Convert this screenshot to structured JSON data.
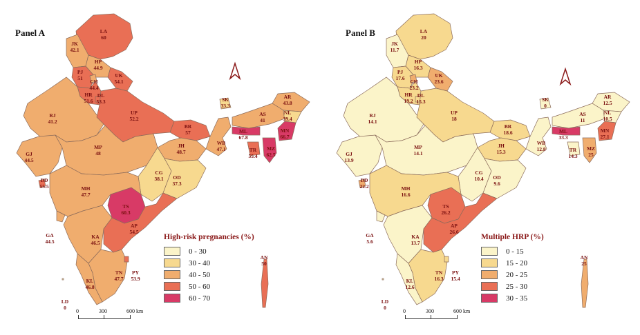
{
  "panels": [
    {
      "title": "Panel A",
      "legend": {
        "title": "High-risk pregnancies (%)",
        "items": [
          {
            "label": "0 - 30",
            "color": "#fbf4c9"
          },
          {
            "label": "30 - 40",
            "color": "#f7d98f"
          },
          {
            "label": "40 - 50",
            "color": "#f0ad6e"
          },
          {
            "label": "50 - 60",
            "color": "#e96f55"
          },
          {
            "label": "60 - 70",
            "color": "#d83a66"
          }
        ]
      },
      "scale": {
        "labels": [
          "0",
          "300",
          "600 km"
        ]
      },
      "regions": [
        {
          "code": "LA",
          "value": "60",
          "color": "#e96f55"
        },
        {
          "code": "JK",
          "value": "42.1",
          "color": "#f0ad6e"
        },
        {
          "code": "HP",
          "value": "44.9",
          "color": "#f0ad6e"
        },
        {
          "code": "PJ",
          "value": "51",
          "color": "#e96f55"
        },
        {
          "code": "CH",
          "value": "44.4",
          "color": "#f0ad6e"
        },
        {
          "code": "UK",
          "value": "54.1",
          "color": "#e96f55"
        },
        {
          "code": "HR",
          "value": "51.6",
          "color": "#e96f55"
        },
        {
          "code": "DL",
          "value": "53.3",
          "color": "#e96f55"
        },
        {
          "code": "RJ",
          "value": "41.2",
          "color": "#f0ad6e"
        },
        {
          "code": "UP",
          "value": "52.2",
          "color": "#e96f55"
        },
        {
          "code": "BR",
          "value": "57",
          "color": "#e96f55"
        },
        {
          "code": "SK",
          "value": "33.3",
          "color": "#f7d98f"
        },
        {
          "code": "AR",
          "value": "43.8",
          "color": "#f0ad6e"
        },
        {
          "code": "AS",
          "value": "41",
          "color": "#f0ad6e"
        },
        {
          "code": "NL",
          "value": "39.4",
          "color": "#f7d98f"
        },
        {
          "code": "ML",
          "value": "67.8",
          "color": "#d83a66"
        },
        {
          "code": "MN",
          "value": "66.7",
          "color": "#d83a66"
        },
        {
          "code": "TR",
          "value": "55.4",
          "color": "#e96f55"
        },
        {
          "code": "MZ",
          "value": "62.5",
          "color": "#d83a66"
        },
        {
          "code": "WB",
          "value": "47.1",
          "color": "#f0ad6e"
        },
        {
          "code": "JH",
          "value": "48.7",
          "color": "#f0ad6e"
        },
        {
          "code": "GJ",
          "value": "44.5",
          "color": "#f0ad6e"
        },
        {
          "code": "MP",
          "value": "48",
          "color": "#f0ad6e"
        },
        {
          "code": "CG",
          "value": "38.1",
          "color": "#f7d98f"
        },
        {
          "code": "OD",
          "value": "37.3",
          "color": "#f7d98f"
        },
        {
          "code": "DD",
          "value": "55.5",
          "color": "#e96f55"
        },
        {
          "code": "MH",
          "value": "47.7",
          "color": "#f0ad6e"
        },
        {
          "code": "TS",
          "value": "60.3",
          "color": "#d83a66"
        },
        {
          "code": "GA",
          "value": "44.5",
          "color": "#f0ad6e"
        },
        {
          "code": "KA",
          "value": "46.5",
          "color": "#f0ad6e"
        },
        {
          "code": "AP",
          "value": "54.5",
          "color": "#e96f55"
        },
        {
          "code": "TN",
          "value": "47.7",
          "color": "#f0ad6e"
        },
        {
          "code": "PY",
          "value": "53.9",
          "color": "#e96f55"
        },
        {
          "code": "KL",
          "value": "46.8",
          "color": "#f0ad6e"
        },
        {
          "code": "LD",
          "value": "0",
          "color": "#fbf4c9"
        },
        {
          "code": "AN",
          "value": "50",
          "color": "#e96f55"
        }
      ]
    },
    {
      "title": "Panel B",
      "legend": {
        "title": "Multiple HRP (%)",
        "items": [
          {
            "label": "0 - 15",
            "color": "#fbf4c9"
          },
          {
            "label": "15 - 20",
            "color": "#f7d98f"
          },
          {
            "label": "20 - 25",
            "color": "#f0ad6e"
          },
          {
            "label": "25 - 30",
            "color": "#e96f55"
          },
          {
            "label": "30 - 35",
            "color": "#d83a66"
          }
        ]
      },
      "scale": {
        "labels": [
          "0",
          "300",
          "600 km"
        ]
      },
      "regions": [
        {
          "code": "LA",
          "value": "20",
          "color": "#f7d98f"
        },
        {
          "code": "JK",
          "value": "11.7",
          "color": "#fbf4c9"
        },
        {
          "code": "HP",
          "value": "16.3",
          "color": "#f7d98f"
        },
        {
          "code": "PJ",
          "value": "17.6",
          "color": "#f7d98f"
        },
        {
          "code": "CH",
          "value": "23.2",
          "color": "#f0ad6e"
        },
        {
          "code": "UK",
          "value": "23.6",
          "color": "#f0ad6e"
        },
        {
          "code": "HR",
          "value": "19.2",
          "color": "#f7d98f"
        },
        {
          "code": "DL",
          "value": "15.3",
          "color": "#f7d98f"
        },
        {
          "code": "RJ",
          "value": "14.1",
          "color": "#fbf4c9"
        },
        {
          "code": "UP",
          "value": "18",
          "color": "#f7d98f"
        },
        {
          "code": "BR",
          "value": "18.6",
          "color": "#f7d98f"
        },
        {
          "code": "SK",
          "value": "0",
          "color": "#fbf4c9"
        },
        {
          "code": "AR",
          "value": "12.5",
          "color": "#fbf4c9"
        },
        {
          "code": "AS",
          "value": "11",
          "color": "#fbf4c9"
        },
        {
          "code": "NL",
          "value": "10.5",
          "color": "#fbf4c9"
        },
        {
          "code": "ML",
          "value": "33.3",
          "color": "#d83a66"
        },
        {
          "code": "MN",
          "value": "27.1",
          "color": "#e96f55"
        },
        {
          "code": "TR",
          "value": "14.3",
          "color": "#fbf4c9"
        },
        {
          "code": "MZ",
          "value": "25",
          "color": "#f0ad6e"
        },
        {
          "code": "WB",
          "value": "12.8",
          "color": "#fbf4c9"
        },
        {
          "code": "JH",
          "value": "15.3",
          "color": "#f7d98f"
        },
        {
          "code": "GJ",
          "value": "13.9",
          "color": "#fbf4c9"
        },
        {
          "code": "MP",
          "value": "14.1",
          "color": "#fbf4c9"
        },
        {
          "code": "CG",
          "value": "10.4",
          "color": "#fbf4c9"
        },
        {
          "code": "OD",
          "value": "9.6",
          "color": "#fbf4c9"
        },
        {
          "code": "DD",
          "value": "22.2",
          "color": "#f0ad6e"
        },
        {
          "code": "MH",
          "value": "16.6",
          "color": "#f7d98f"
        },
        {
          "code": "TS",
          "value": "26.2",
          "color": "#e96f55"
        },
        {
          "code": "GA",
          "value": "5.6",
          "color": "#fbf4c9"
        },
        {
          "code": "KA",
          "value": "13.7",
          "color": "#fbf4c9"
        },
        {
          "code": "AP",
          "value": "26.6",
          "color": "#e96f55"
        },
        {
          "code": "TN",
          "value": "16.3",
          "color": "#f7d98f"
        },
        {
          "code": "PY",
          "value": "15.4",
          "color": "#f7d98f"
        },
        {
          "code": "KL",
          "value": "12.6",
          "color": "#fbf4c9"
        },
        {
          "code": "LD",
          "value": "0",
          "color": "#fbf4c9"
        },
        {
          "code": "AN",
          "value": "25",
          "color": "#f0ad6e"
        }
      ]
    }
  ]
}
